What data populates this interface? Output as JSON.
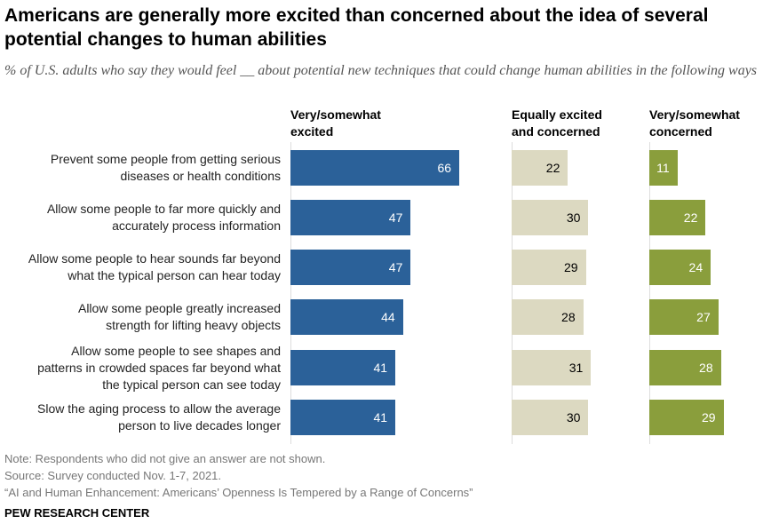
{
  "chart_data": {
    "type": "bar",
    "title": "Americans are generally more excited than concerned about the idea of several potential changes to human abilities",
    "subtitle": "% of U.S. adults who say they would feel __ about potential new techniques that could change human abilities in the following ways",
    "categories": [
      "Prevent some people from getting serious diseases or health conditions",
      "Allow some people to far more quickly and accurately process information",
      "Allow some people to hear sounds far beyond what the typical person can hear today",
      "Allow some people greatly increased strength for lifting heavy objects",
      "Allow some people to see shapes and patterns in crowded spaces far beyond what the typical person can see today",
      "Slow the aging process to allow the average person to live decades longer"
    ],
    "category_lines": [
      [
        "Prevent some people from getting serious",
        "diseases or health conditions"
      ],
      [
        "Allow some people to far more quickly and",
        "accurately process information"
      ],
      [
        "Allow some people to hear sounds far beyond",
        "what the typical person can hear today"
      ],
      [
        "Allow some people greatly increased",
        "strength for lifting heavy objects"
      ],
      [
        "Allow some people to see shapes and",
        "patterns in crowded spaces far beyond what",
        "the typical person can see today"
      ],
      [
        "Slow the aging process to allow the average",
        "person to live decades longer"
      ]
    ],
    "series": [
      {
        "name": "Very/somewhat excited",
        "name_lines": [
          "Very/somewhat",
          "excited"
        ],
        "color": "#2b6199",
        "label_color": "#ffffff",
        "values": [
          66,
          47,
          47,
          44,
          41,
          41
        ]
      },
      {
        "name": "Equally excited and concerned",
        "name_lines": [
          "Equally excited",
          "and concerned"
        ],
        "color": "#dcd9c1",
        "label_color": "#000000",
        "values": [
          22,
          30,
          29,
          28,
          31,
          30
        ]
      },
      {
        "name": "Very/somewhat concerned",
        "name_lines": [
          "Very/somewhat",
          "concerned"
        ],
        "color": "#8a9e3c",
        "label_color": "#ffffff",
        "values": [
          11,
          22,
          24,
          27,
          28,
          29
        ]
      }
    ],
    "orientation": "horizontal",
    "data_labels": true,
    "grid": false
  },
  "footer": {
    "note": "Note: Respondents who did not give an answer are not shown.",
    "source": "Source: Survey conducted Nov. 1-7, 2021.",
    "report": "“AI and Human Enhancement: Americans’ Openness Is Tempered by a Range of Concerns”",
    "brand": "PEW RESEARCH CENTER"
  }
}
